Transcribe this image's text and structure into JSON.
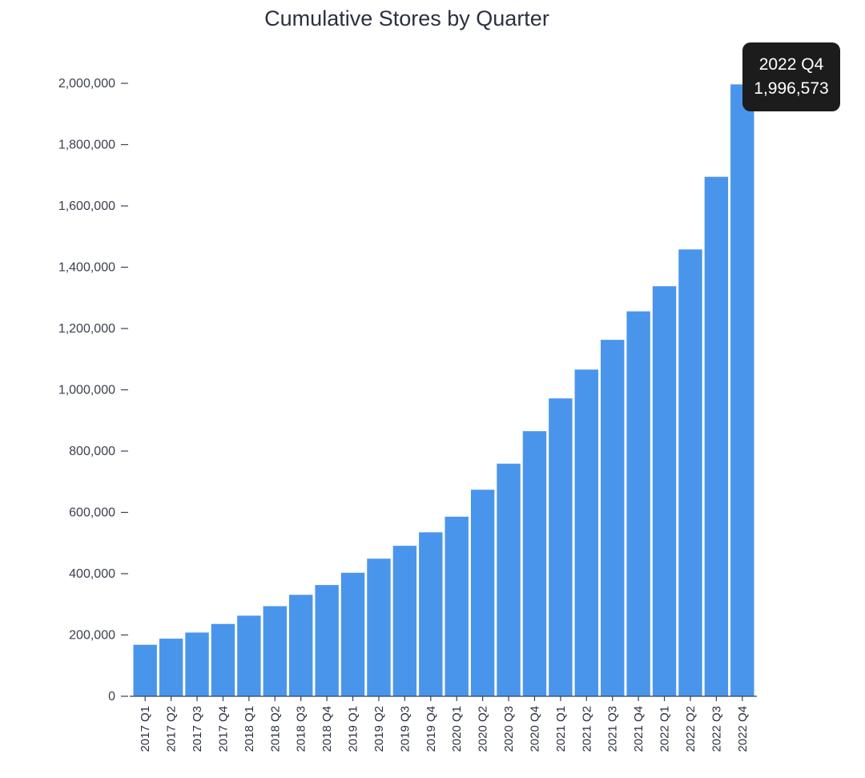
{
  "chart_data": {
    "type": "bar",
    "title": "Cumulative Stores by Quarter",
    "xlabel": "",
    "ylabel": "",
    "ylim": [
      0,
      2000000
    ],
    "yticks": [
      "0",
      "200,000",
      "400,000",
      "600,000",
      "800,000",
      "1,000,000",
      "1,200,000",
      "1,400,000",
      "1,600,000",
      "1,800,000",
      "2,000,000"
    ],
    "ytick_values": [
      0,
      200000,
      400000,
      600000,
      800000,
      1000000,
      1200000,
      1400000,
      1600000,
      1800000,
      2000000
    ],
    "grid": false,
    "categories": [
      "2017 Q1",
      "2017 Q2",
      "2017 Q3",
      "2017 Q4",
      "2018 Q1",
      "2018 Q2",
      "2018 Q3",
      "2018 Q4",
      "2019 Q1",
      "2019 Q2",
      "2019 Q3",
      "2019 Q4",
      "2020 Q1",
      "2020 Q2",
      "2020 Q3",
      "2020 Q4",
      "2021 Q1",
      "2021 Q2",
      "2021 Q3",
      "2021 Q4",
      "2022 Q1",
      "2022 Q2",
      "2022 Q3",
      "2022 Q4"
    ],
    "values": [
      168000,
      188000,
      208000,
      236000,
      263000,
      294000,
      331000,
      363000,
      403000,
      449000,
      491000,
      535000,
      586000,
      674000,
      759000,
      865000,
      972000,
      1066000,
      1163000,
      1256000,
      1338000,
      1458000,
      1695000,
      1996573
    ],
    "bar_color": "#4a95ec",
    "tooltip": {
      "category": "2022 Q4",
      "value": "1,996,573"
    }
  }
}
